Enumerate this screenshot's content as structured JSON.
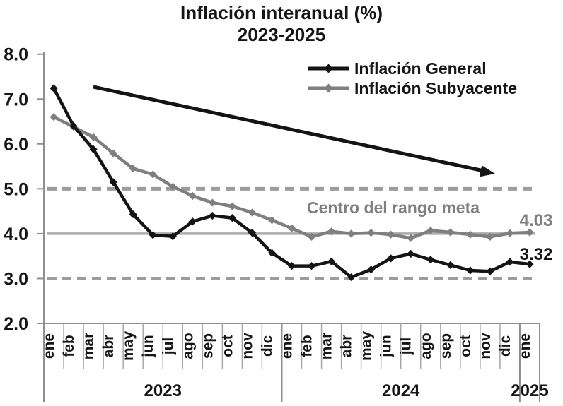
{
  "title": "Inflación interanual (%)",
  "subtitle": "2023-2025",
  "chart_data": {
    "type": "line",
    "title": "Inflación interanual (%)",
    "subtitle": "2023-2025",
    "ylim": [
      2.0,
      8.0
    ],
    "y_ticks": [
      8.0,
      7.0,
      6.0,
      5.0,
      4.0,
      3.0,
      2.0
    ],
    "y_tick_labels": [
      "8.0",
      "7.0",
      "6.0",
      "5.0",
      "4.0",
      "3.0",
      "2.0"
    ],
    "grid": false,
    "legend_position": "top-right",
    "x_years": [
      {
        "label": "2023",
        "months": [
          "ene",
          "feb",
          "mar",
          "abr",
          "may",
          "jun",
          "jul",
          "ago",
          "sep",
          "oct",
          "nov",
          "dic"
        ]
      },
      {
        "label": "2024",
        "months": [
          "ene",
          "feb",
          "mar",
          "abr",
          "may",
          "jun",
          "jul",
          "ago",
          "sep",
          "oct",
          "nov",
          "dic"
        ]
      },
      {
        "label": "2025",
        "months": [
          "ene"
        ]
      }
    ],
    "series": [
      {
        "name": "Inflación General",
        "color": "#141414",
        "values": [
          7.24,
          6.4,
          5.88,
          5.15,
          4.43,
          3.97,
          3.94,
          4.27,
          4.4,
          4.35,
          4.02,
          3.57,
          3.28,
          3.28,
          3.38,
          3.03,
          3.2,
          3.45,
          3.55,
          3.42,
          3.3,
          3.18,
          3.16,
          3.37,
          3.32
        ]
      },
      {
        "name": "Inflación Subyacente",
        "color": "#7f7f7f",
        "values": [
          6.6,
          6.38,
          6.15,
          5.79,
          5.45,
          5.32,
          5.05,
          4.84,
          4.69,
          4.61,
          4.47,
          4.3,
          4.12,
          3.93,
          4.05,
          4.0,
          4.02,
          3.98,
          3.9,
          4.07,
          4.03,
          3.98,
          3.93,
          4.01,
          4.03
        ]
      }
    ],
    "reference_lines": [
      {
        "value": 5.0,
        "style": "dashed",
        "label": ""
      },
      {
        "value": 4.0,
        "style": "solid",
        "label": "Centro del rango meta"
      },
      {
        "value": 3.0,
        "style": "dashed",
        "label": ""
      }
    ],
    "end_labels": [
      {
        "text": "4.03",
        "series": "Inflación Subyacente"
      },
      {
        "text": "3.32",
        "series": "Inflación General"
      }
    ],
    "trend_arrow": "downward"
  }
}
